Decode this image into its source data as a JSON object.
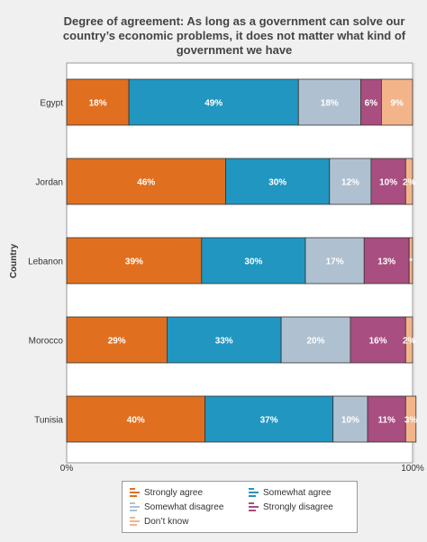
{
  "chart_data": {
    "type": "bar",
    "orientation": "horizontal",
    "stacked": true,
    "title": "Degree of agreement: As long as a government can solve our country’s economic problems, it does not matter what kind of government we have",
    "ylabel": "Country",
    "xlabel": "",
    "xlim": [
      0,
      100
    ],
    "x_tick_labels": [
      "0%",
      "100%"
    ],
    "categories": [
      "Egypt",
      "Jordan",
      "Lebanon",
      "Morocco",
      "Tunisia"
    ],
    "series": [
      {
        "name": "Strongly agree",
        "color": "#e07020",
        "values": [
          18,
          46,
          39,
          29,
          40
        ],
        "labels": [
          "18%",
          "46%",
          "39%",
          "29%",
          "40%"
        ]
      },
      {
        "name": "Somewhat agree",
        "color": "#2196c0",
        "values": [
          49,
          30,
          30,
          33,
          37
        ],
        "labels": [
          "49%",
          "30%",
          "30%",
          "33%",
          "37%"
        ]
      },
      {
        "name": "Somewhat disagree",
        "color": "#afc1d1",
        "values": [
          18,
          12,
          17,
          20,
          10
        ],
        "labels": [
          "18%",
          "12%",
          "17%",
          "20%",
          "10%"
        ]
      },
      {
        "name": "Strongly disagree",
        "color": "#a84e80",
        "values": [
          6,
          10,
          13,
          16,
          11
        ],
        "labels": [
          "6%",
          "10%",
          "13%",
          "16%",
          "11%"
        ]
      },
      {
        "name": "Don’t know",
        "color": "#f4b48a",
        "values": [
          9,
          2,
          1,
          2,
          3
        ],
        "labels": [
          "9%",
          "2%",
          "*",
          "2%",
          "3%"
        ]
      }
    ],
    "legend_position": "bottom",
    "grid": false
  }
}
